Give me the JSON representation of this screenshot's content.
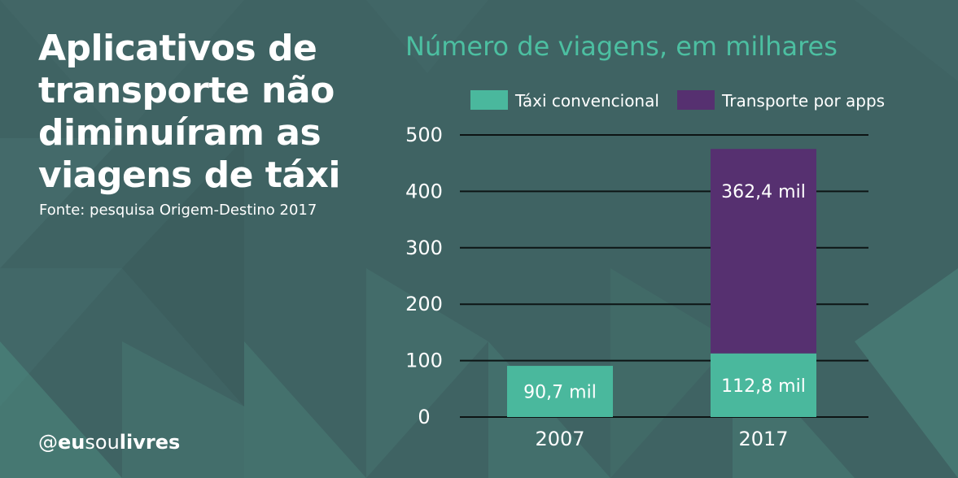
{
  "headline": "Aplicativos de transporte não diminuíram as viagens de táxi",
  "source": "Fonte: pesquisa Origem-Destino 2017",
  "handle": {
    "prefix": "@",
    "part1": "eu",
    "part2": "sou",
    "part3": "livres"
  },
  "colors": {
    "taxi": "#4ab89d",
    "apps": "#563070",
    "accent_text": "#4cbfa1",
    "background": "#3f6363"
  },
  "chart_data": {
    "type": "bar",
    "stacked": true,
    "title": "Número de viagens, em milhares",
    "categories": [
      "2007",
      "2017"
    ],
    "series": [
      {
        "name": "Táxi convencional",
        "values": [
          90.7,
          112.8
        ],
        "labels": [
          "90,7 mil",
          "112,8 mil"
        ],
        "color": "#4ab89d"
      },
      {
        "name": "Transporte por apps",
        "values": [
          null,
          362.4
        ],
        "labels": [
          "",
          "362,4 mil"
        ],
        "color": "#563070"
      }
    ],
    "yticks": [
      "0",
      "100",
      "200",
      "300",
      "400",
      "500"
    ],
    "ylim": [
      0,
      500
    ],
    "grid": true,
    "legend": "top-right"
  }
}
